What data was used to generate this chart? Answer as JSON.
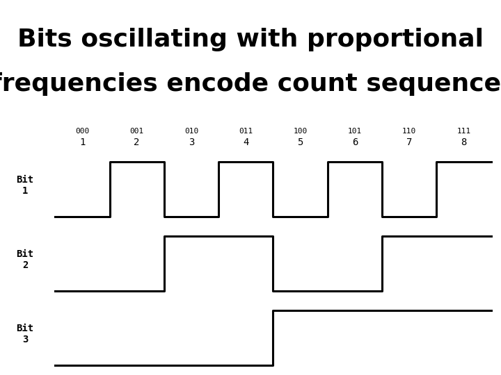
{
  "title_line1": "Bits oscillating with proportional",
  "title_line2": "frequencies encode count sequence.",
  "title_fontsize": 26,
  "title_fontweight": "bold",
  "background_color": "#ffffff",
  "line_color": "#000000",
  "line_width": 2.2,
  "text_color": "#000000",
  "binary_labels": [
    "000",
    "001",
    "010",
    "011",
    "100",
    "101",
    "110",
    "111"
  ],
  "decimal_labels": [
    "1",
    "2",
    "3",
    "4",
    "5",
    "6",
    "7",
    "8"
  ],
  "bit_labels": [
    "Bit\n1",
    "Bit\n2",
    "Bit\n3"
  ],
  "num_slots": 8,
  "bit1_values": [
    0,
    1,
    0,
    1,
    0,
    1,
    0,
    1
  ],
  "bit2_values": [
    0,
    0,
    1,
    1,
    0,
    0,
    1,
    1
  ],
  "bit3_values": [
    0,
    0,
    0,
    0,
    1,
    1,
    1,
    1
  ],
  "waveform_low": 0.08,
  "waveform_high": 0.82,
  "label_fontsize": 8,
  "decimal_fontsize": 10,
  "bit_label_fontsize": 10
}
